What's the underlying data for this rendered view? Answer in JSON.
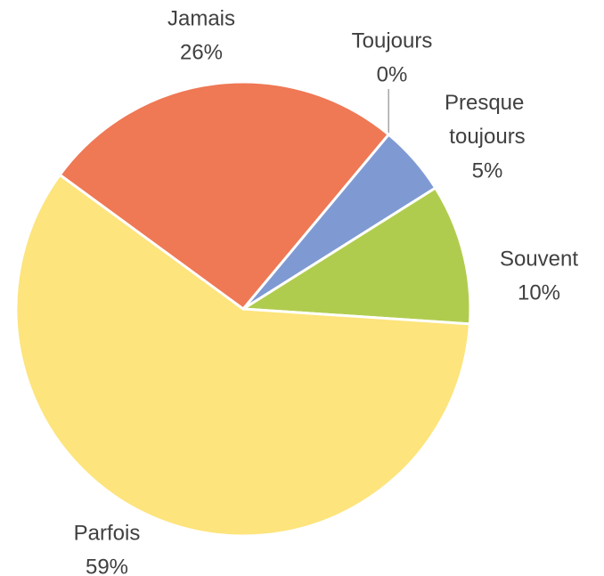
{
  "chart_data": {
    "type": "pie",
    "categories": [
      "Toujours",
      "Presque toujours",
      "Souvent",
      "Parfois",
      "Jamais"
    ],
    "values": [
      0,
      5,
      10,
      59,
      26
    ],
    "value_labels": [
      "0%",
      "5%",
      "10%",
      "59%",
      "26%"
    ],
    "colors": [
      "#a5a5a5",
      "#7f9ad3",
      "#b0cc4e",
      "#fde47c",
      "#ef7855"
    ]
  }
}
